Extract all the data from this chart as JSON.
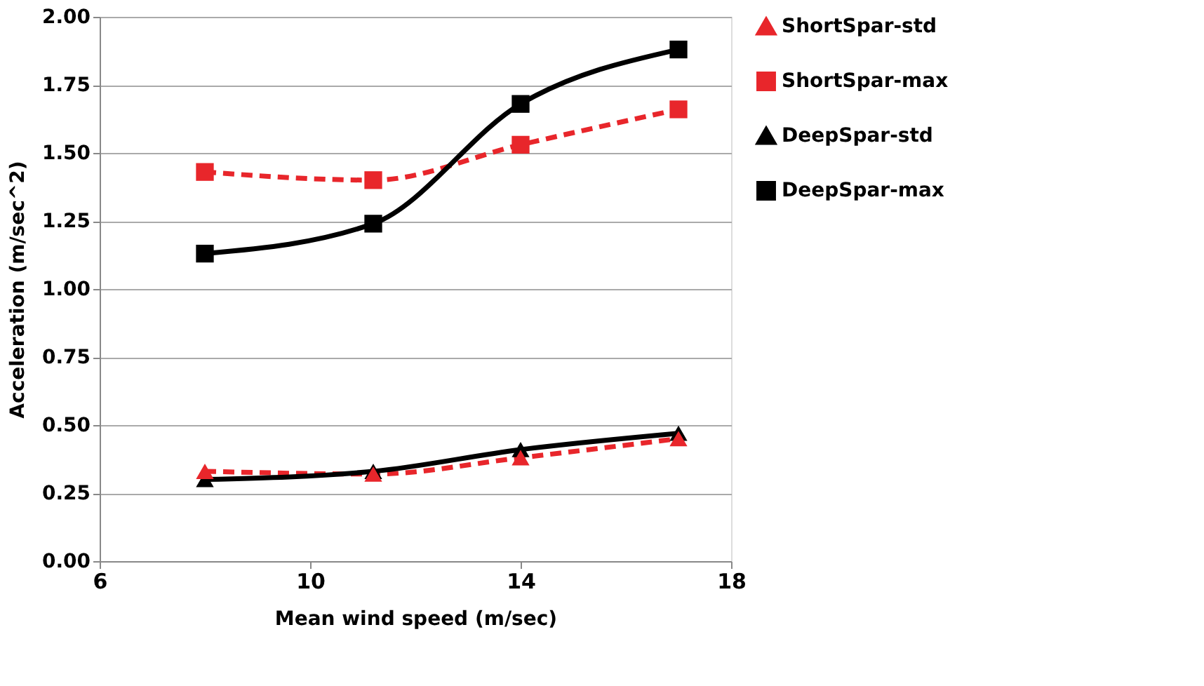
{
  "chart_data": {
    "type": "line",
    "xlabel": "Mean wind speed (m/sec)",
    "ylabel": "Acceleration (m/sec^2)",
    "x": [
      8,
      11.2,
      14,
      17
    ],
    "series": [
      {
        "name": "ShortSpar-std",
        "color": "#e8262b",
        "marker": "triangle",
        "line_style": "dashed",
        "values": [
          0.33,
          0.32,
          0.38,
          0.45
        ]
      },
      {
        "name": "ShortSpar-max",
        "color": "#e8262b",
        "marker": "square",
        "line_style": "dashed",
        "values": [
          1.43,
          1.4,
          1.53,
          1.66
        ]
      },
      {
        "name": "DeepSpar-std",
        "color": "#000000",
        "marker": "triangle",
        "line_style": "solid",
        "values": [
          0.3,
          0.33,
          0.41,
          0.47
        ]
      },
      {
        "name": "DeepSpar-max",
        "color": "#000000",
        "marker": "square",
        "line_style": "solid",
        "values": [
          1.13,
          1.24,
          1.68,
          1.88
        ]
      }
    ],
    "xlim": [
      6,
      18
    ],
    "xticks": [
      6,
      10,
      14,
      18
    ],
    "ylim": [
      0,
      2
    ],
    "yticks": [
      {
        "value": 0,
        "label": "0.00"
      },
      {
        "value": 0.25,
        "label": "0.25"
      },
      {
        "value": 0.5,
        "label": "0.50"
      },
      {
        "value": 0.75,
        "label": "0.75"
      },
      {
        "value": 1,
        "label": "1.00"
      },
      {
        "value": 1.25,
        "label": "1.25"
      },
      {
        "value": 1.5,
        "label": "1.50"
      },
      {
        "value": 1.75,
        "label": "1.75"
      },
      {
        "value": 2,
        "label": "2.00"
      }
    ],
    "grid": "y",
    "legend": "right"
  }
}
